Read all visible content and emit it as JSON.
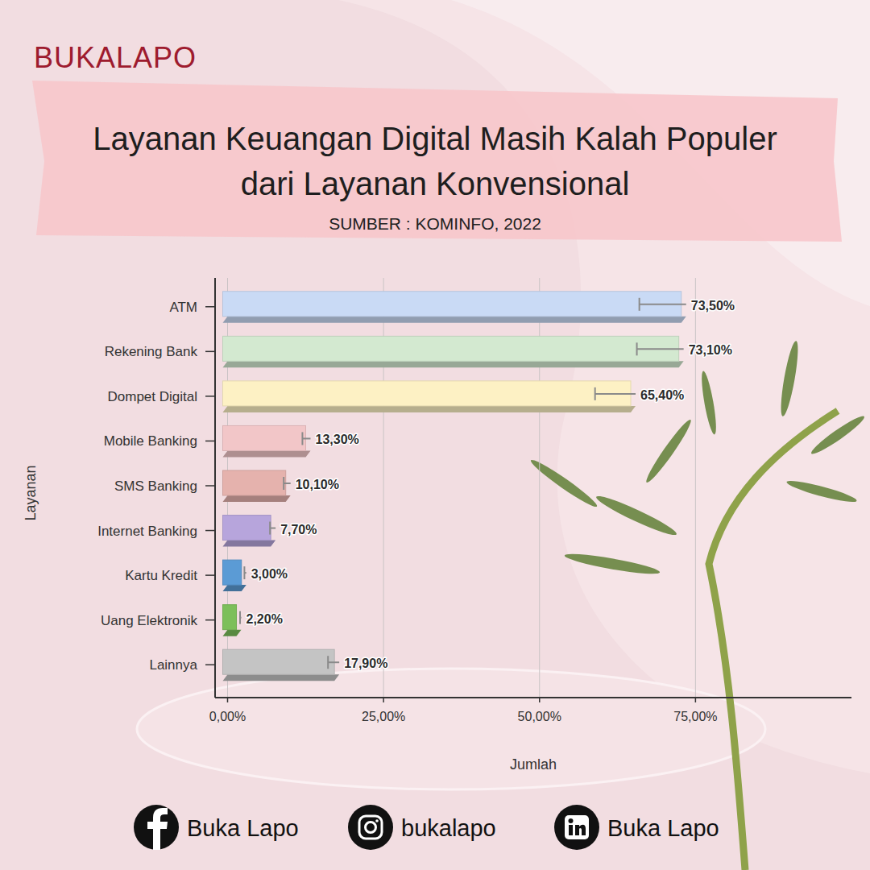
{
  "header": {
    "logo": "BUKALAPO"
  },
  "chart_data": {
    "type": "bar",
    "orientation": "horizontal",
    "title": [
      "Layanan Keuangan Digital Masih Kalah Populer",
      "dari Layanan Konvensional"
    ],
    "subtitle": "SUMBER : KOMINFO, 2022",
    "xlabel": "Jumlah",
    "ylabel": "Layanan",
    "categories": [
      "ATM",
      "Rekening Bank",
      "Dompet Digital",
      "Mobile Banking",
      "SMS Banking",
      "Internet Banking",
      "Kartu Kredit",
      "Uang Elektronik",
      "Lainnya"
    ],
    "values": [
      73.5,
      73.1,
      65.4,
      13.3,
      10.1,
      7.7,
      3.0,
      2.2,
      17.9
    ],
    "value_labels": [
      "73,50%",
      "73,10%",
      "65,40%",
      "13,30%",
      "10,10%",
      "7,70%",
      "3,00%",
      "2,20%",
      "17,90%"
    ],
    "errors": [
      7.5,
      7.5,
      6.5,
      1.3,
      1.1,
      0.9,
      0.3,
      0.2,
      1.8
    ],
    "colors": [
      "#c9daf5",
      "#d3e9d0",
      "#fdf1c4",
      "#f2c6c8",
      "#e5b2ad",
      "#b7a5dc",
      "#5b9bd5",
      "#7cbf5a",
      "#c4c4c4"
    ],
    "xlim": [
      -2,
      100
    ],
    "xticks": [
      {
        "value": 0,
        "label": "0,00%"
      },
      {
        "value": 25,
        "label": "25,00%"
      },
      {
        "value": 50,
        "label": "50,00%"
      },
      {
        "value": 75,
        "label": "75,00%"
      }
    ],
    "grid": true,
    "data_labels": true
  },
  "footer": {
    "social": [
      "Buka Lapo",
      "bukalapo",
      "Buka Lapo"
    ]
  }
}
